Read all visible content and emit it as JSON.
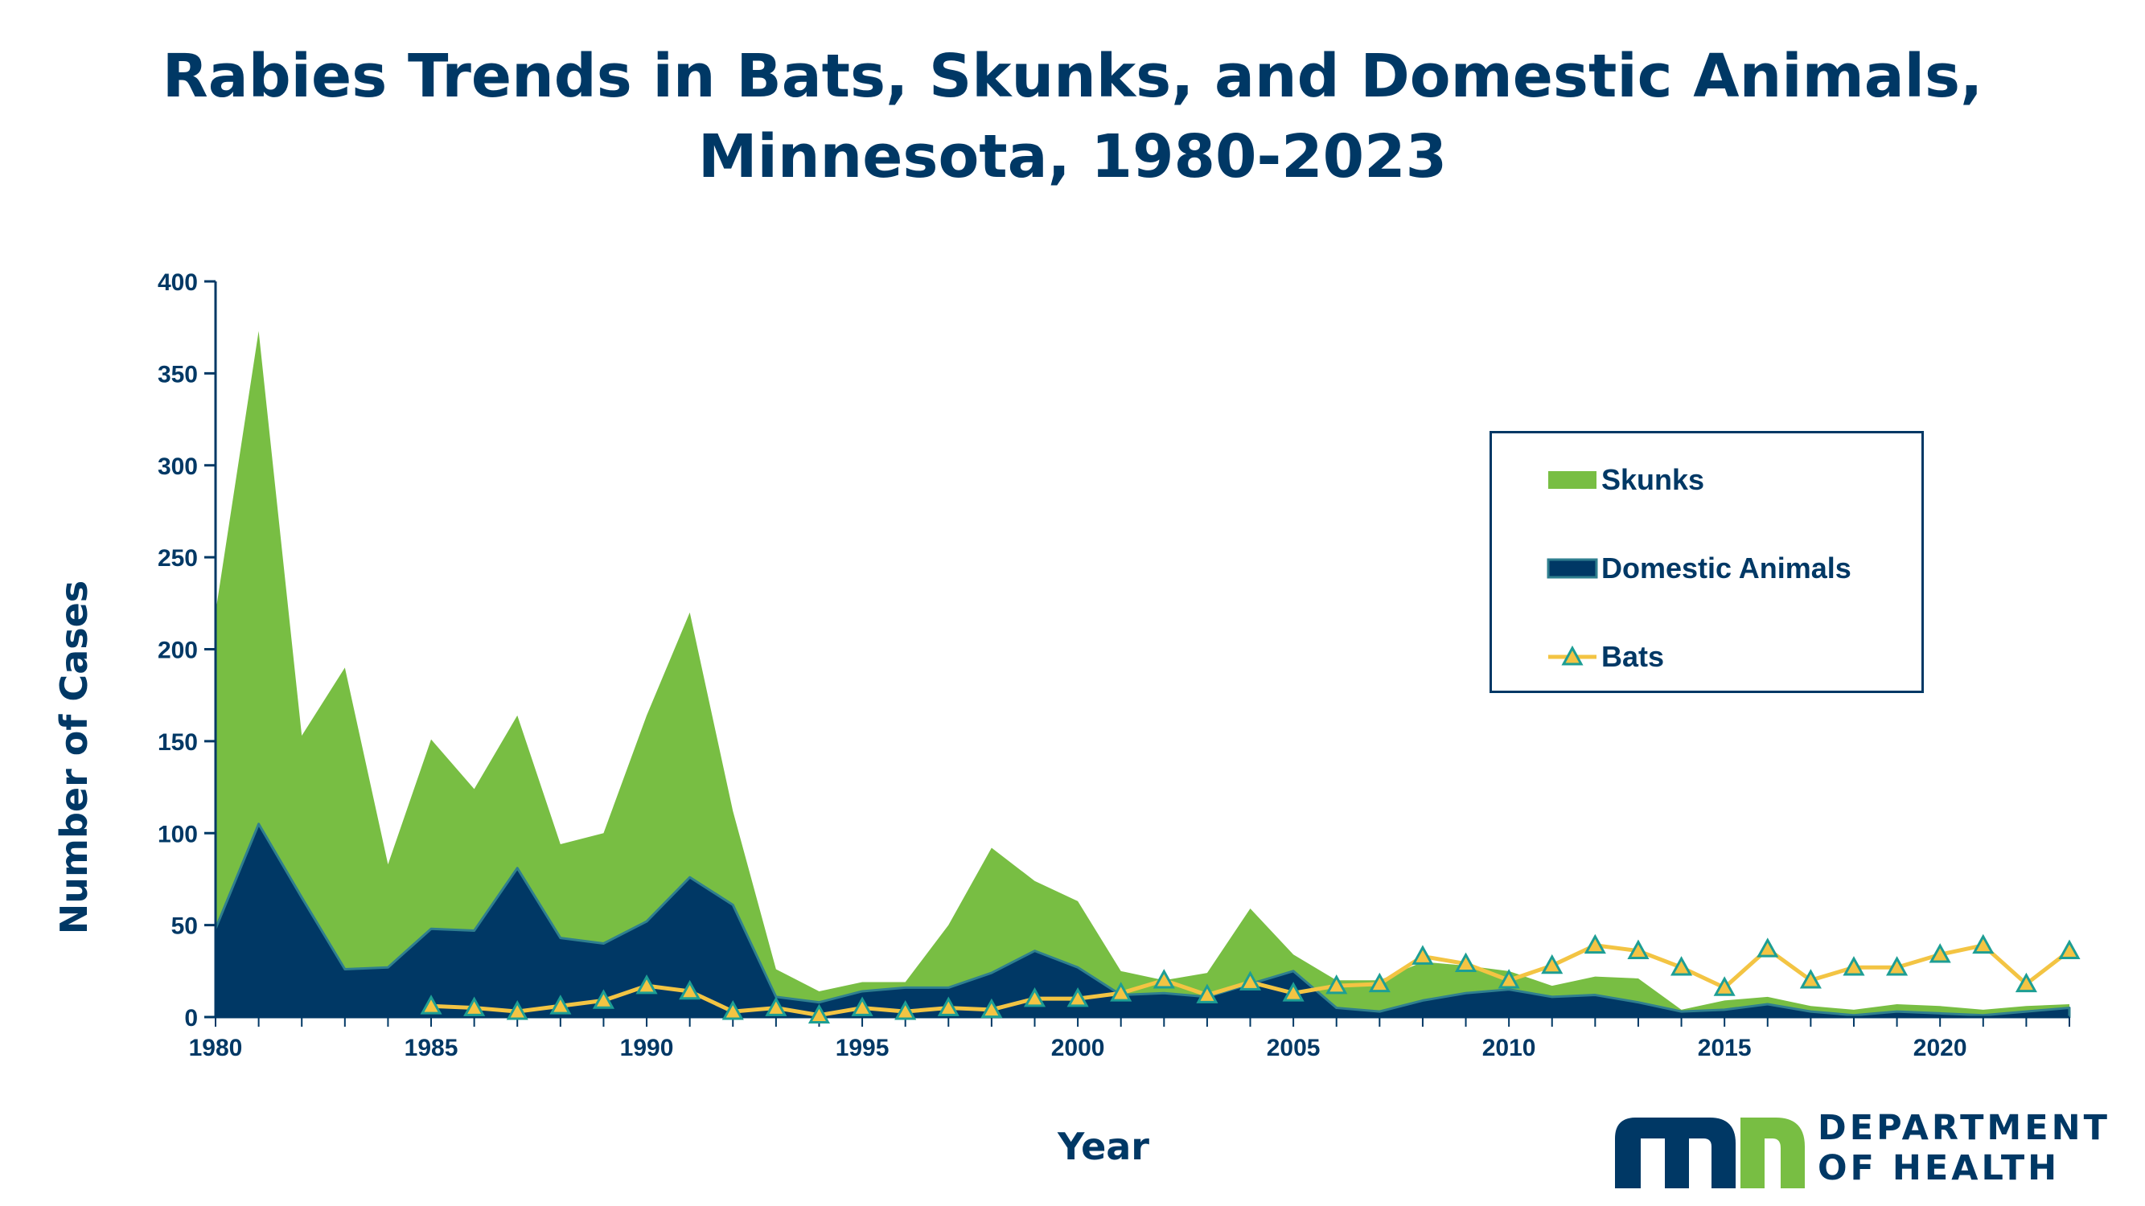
{
  "chart_data": {
    "type": "area",
    "title": "Rabies Trends in Bats, Skunks, and Domestic Animals,",
    "subtitle": "Minnesota, 1980-2023",
    "xlabel": "Year",
    "ylabel": "Number of Cases",
    "xlim": [
      1980,
      2023
    ],
    "ylim": [
      0,
      400
    ],
    "x_ticks": [
      "1980",
      "1985",
      "1990",
      "1995",
      "2000",
      "2005",
      "2010",
      "2015",
      "2020"
    ],
    "y_ticks": [
      "0",
      "50",
      "100",
      "150",
      "200",
      "250",
      "300",
      "350",
      "400"
    ],
    "legend_position": "right",
    "grid": false,
    "years": [
      1980,
      1981,
      1982,
      1983,
      1984,
      1985,
      1986,
      1987,
      1988,
      1989,
      1990,
      1991,
      1992,
      1993,
      1994,
      1995,
      1996,
      1997,
      1998,
      1999,
      2000,
      2001,
      2002,
      2003,
      2004,
      2005,
      2006,
      2007,
      2008,
      2009,
      2010,
      2011,
      2012,
      2013,
      2014,
      2015,
      2016,
      2017,
      2018,
      2019,
      2020,
      2021,
      2022,
      2023
    ],
    "series": [
      {
        "name": "Skunks",
        "type": "area",
        "stacked_on": "Domestic Animals",
        "color": "#78be43",
        "values": [
          172,
          268,
          88,
          164,
          56,
          103,
          77,
          83,
          51,
          60,
          112,
          144,
          51,
          15,
          6,
          5,
          3,
          34,
          68,
          38,
          36,
          13,
          7,
          13,
          41,
          9,
          15,
          17,
          21,
          15,
          10,
          6,
          10,
          13,
          1,
          5,
          4,
          3,
          3,
          4,
          4,
          3,
          3,
          2
        ]
      },
      {
        "name": "Domestic Animals",
        "type": "area",
        "color": "#003865",
        "values": [
          48,
          105,
          65,
          26,
          27,
          48,
          47,
          81,
          43,
          40,
          52,
          76,
          61,
          11,
          8,
          14,
          16,
          16,
          24,
          36,
          27,
          12,
          13,
          11,
          18,
          25,
          5,
          3,
          9,
          13,
          15,
          11,
          12,
          8,
          3,
          4,
          7,
          3,
          1,
          3,
          2,
          1,
          3,
          5
        ]
      },
      {
        "name": "Bats",
        "type": "line",
        "color": "#f3c443",
        "marker_color": "#1d9e94",
        "start_year": 1985,
        "values": [
          null,
          null,
          null,
          null,
          null,
          6,
          5,
          3,
          6,
          9,
          17,
          14,
          3,
          5,
          1,
          5,
          3,
          5,
          4,
          10,
          10,
          13,
          20,
          12,
          19,
          13,
          17,
          18,
          33,
          29,
          20,
          28,
          39,
          36,
          27,
          16,
          37,
          20,
          27,
          27,
          34,
          39,
          18,
          36
        ]
      }
    ]
  },
  "logo": {
    "line1": "DEPARTMENT",
    "line2": "OF HEALTH",
    "mark_text": "mn",
    "colors": {
      "navy": "#003865",
      "green": "#78be43"
    }
  },
  "colors": {
    "title": "#003865",
    "axis": "#003865",
    "skunks": "#78be43",
    "domestic": "#003865",
    "bats_line": "#f3c443",
    "bats_marker": "#1d9e94"
  }
}
